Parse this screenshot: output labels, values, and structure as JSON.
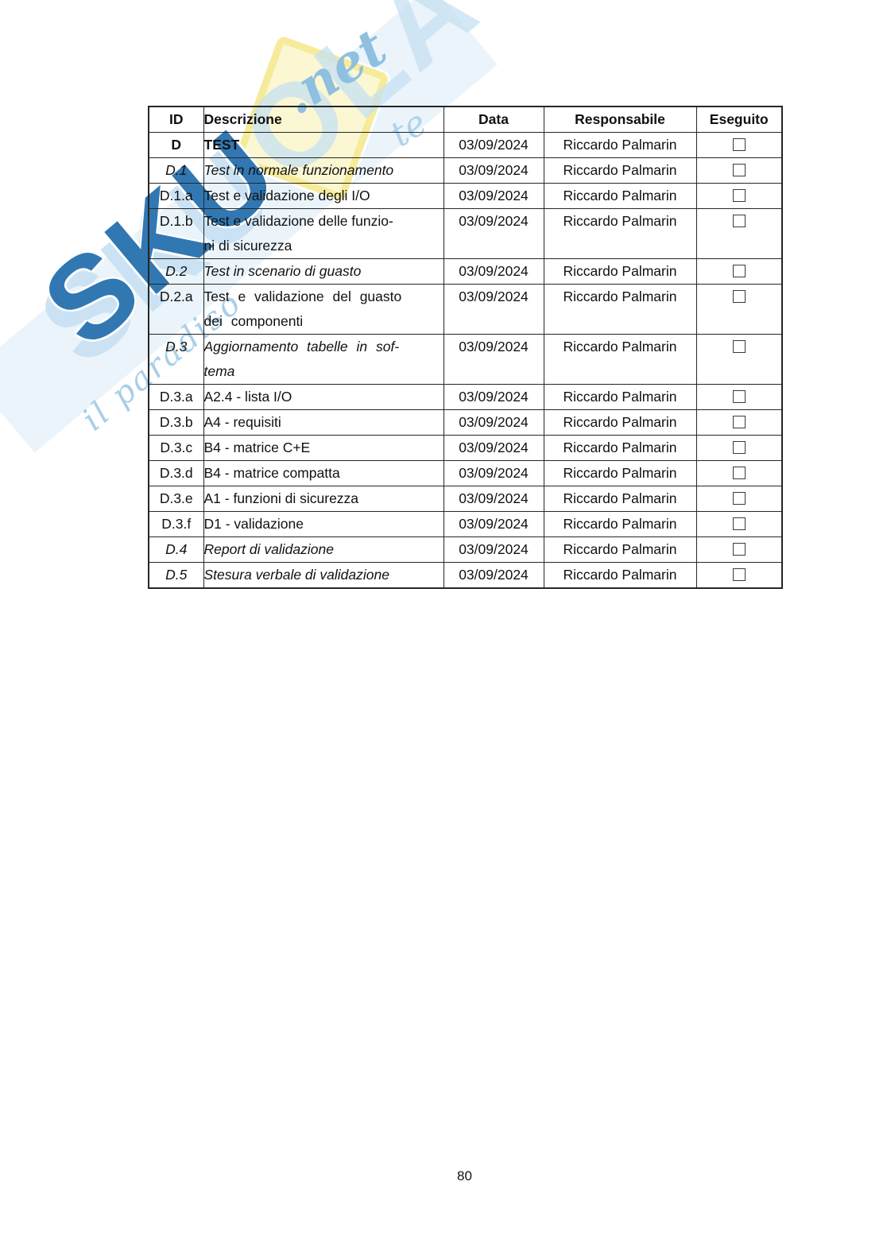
{
  "page": {
    "number": "80",
    "background_color": "#ffffff"
  },
  "watermark": {
    "brand": "Skuola.net",
    "letters_strong": "SKU",
    "letters_pale": "OLA",
    "net_label": ".net",
    "tagline_fragment": "il paradiso",
    "tagline_fragment2": "te",
    "colors": {
      "strong_blue": "#3178b2",
      "pale_blue": "#cee5f3",
      "script_blue": "#a8cfe9",
      "diamond_fill": "#fbf7d2",
      "diamond_border": "#f5eb9a"
    }
  },
  "table": {
    "headers": [
      "ID",
      "Descrizione",
      "Data",
      "Responsabile",
      "Eseguito"
    ],
    "rows": [
      {
        "id": "D",
        "description": "TEST",
        "date": "03/09/2024",
        "responsible": "Riccardo Palmarin",
        "done": false,
        "emphasis": "bold",
        "justify": false
      },
      {
        "id": "D.1",
        "description": "Test in normale funzionamento",
        "date": "03/09/2024",
        "responsible": "Riccardo Palmarin",
        "done": false,
        "emphasis": "italic",
        "justify": false
      },
      {
        "id": "D.1.a",
        "description": "Test e validazione degli I/O",
        "date": "03/09/2024",
        "responsible": "Riccardo Palmarin",
        "done": false,
        "emphasis": "normal",
        "justify": false
      },
      {
        "id": "D.1.b",
        "description": "Test e validazione delle funzio-\nni di sicurezza",
        "date": "03/09/2024",
        "responsible": "Riccardo Palmarin",
        "done": false,
        "emphasis": "normal",
        "justify": false
      },
      {
        "id": "D.2",
        "description": "Test in scenario di guasto",
        "date": "03/09/2024",
        "responsible": "Riccardo Palmarin",
        "done": false,
        "emphasis": "italic",
        "justify": false
      },
      {
        "id": "D.2.a",
        "description": "Test e validazione del guasto\ndei componenti",
        "date": "03/09/2024",
        "responsible": "Riccardo Palmarin",
        "done": false,
        "emphasis": "normal",
        "justify": true
      },
      {
        "id": "D.3",
        "description": "Aggiornamento tabelle in sof-\ntema",
        "date": "03/09/2024",
        "responsible": "Riccardo Palmarin",
        "done": false,
        "emphasis": "italic",
        "justify": true
      },
      {
        "id": "D.3.a",
        "description": "A2.4 - lista I/O",
        "date": "03/09/2024",
        "responsible": "Riccardo Palmarin",
        "done": false,
        "emphasis": "normal",
        "justify": false
      },
      {
        "id": "D.3.b",
        "description": "A4 - requisiti",
        "date": "03/09/2024",
        "responsible": "Riccardo Palmarin",
        "done": false,
        "emphasis": "normal",
        "justify": false
      },
      {
        "id": "D.3.c",
        "description": "B4 - matrice C+E",
        "date": "03/09/2024",
        "responsible": "Riccardo Palmarin",
        "done": false,
        "emphasis": "normal",
        "justify": false
      },
      {
        "id": "D.3.d",
        "description": "B4 - matrice compatta",
        "date": "03/09/2024",
        "responsible": "Riccardo Palmarin",
        "done": false,
        "emphasis": "normal",
        "justify": false
      },
      {
        "id": "D.3.e",
        "description": "A1 - funzioni di sicurezza",
        "date": "03/09/2024",
        "responsible": "Riccardo Palmarin",
        "done": false,
        "emphasis": "normal",
        "justify": false
      },
      {
        "id": "D.3.f",
        "description": "D1 - validazione",
        "date": "03/09/2024",
        "responsible": "Riccardo Palmarin",
        "done": false,
        "emphasis": "normal",
        "justify": false
      },
      {
        "id": "D.4",
        "description": "Report di validazione",
        "date": "03/09/2024",
        "responsible": "Riccardo Palmarin",
        "done": false,
        "emphasis": "italic",
        "justify": false
      },
      {
        "id": "D.5",
        "description": "Stesura verbale di validazione",
        "date": "03/09/2024",
        "responsible": "Riccardo Palmarin",
        "done": false,
        "emphasis": "italic",
        "justify": false
      }
    ]
  }
}
